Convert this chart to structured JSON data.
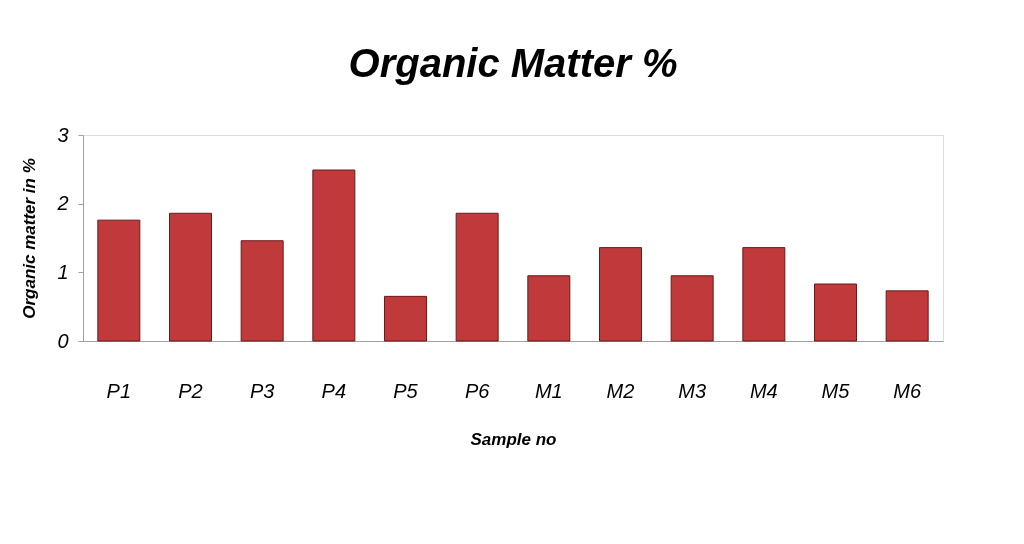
{
  "chart_data": {
    "type": "bar",
    "title": "Organic Matter %",
    "xlabel": "Sample no",
    "ylabel": "Organic matter in %",
    "categories": [
      "P1",
      "P2",
      "P3",
      "P4",
      "P5",
      "P6",
      "M1",
      "M2",
      "M3",
      "M4",
      "M5",
      "M6"
    ],
    "values": [
      1.76,
      1.86,
      1.46,
      2.49,
      0.65,
      1.86,
      0.95,
      1.36,
      0.95,
      1.36,
      0.83,
      0.73
    ],
    "color": "#c0393b",
    "ylim": [
      0,
      3
    ],
    "yticks": [
      0,
      1,
      2,
      3
    ],
    "grid": false
  }
}
